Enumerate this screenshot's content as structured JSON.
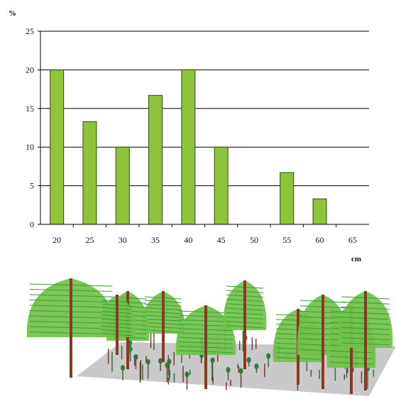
{
  "chart_data": {
    "type": "bar",
    "y_unit_label": "%",
    "x_unit_label": "cm",
    "categories": [
      "20",
      "25",
      "30",
      "35",
      "40",
      "45",
      "50",
      "55",
      "60",
      "65"
    ],
    "values": [
      20,
      13.3,
      10,
      16.7,
      20,
      10,
      0,
      6.7,
      3.3,
      0
    ],
    "ylim": [
      0,
      25
    ],
    "yticks": [
      "0",
      "5",
      "10",
      "15",
      "20",
      "25"
    ],
    "ytick_values": [
      0,
      5,
      10,
      15,
      20,
      25
    ],
    "grid": true,
    "bar_color": "#8fc43a",
    "bar_edge_color": "#2f4a10"
  },
  "illustration": {
    "crown_color": "#6fc24a",
    "trunk_color": "#8a3a22",
    "ground_color": "#c9c9cb"
  }
}
